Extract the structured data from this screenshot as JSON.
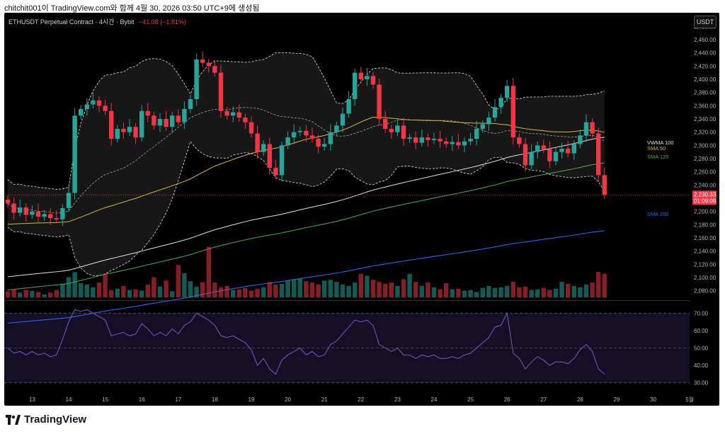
{
  "header": {
    "text": "chitchit001이 TradingView.com와 함께 4월 30, 2026 03:50 UTC+9에 생성됨"
  },
  "symbol": {
    "title": "ETHUSDT Perpetual Contract · 4시간 · Bybit",
    "change": "−41.08 (−1.81%)"
  },
  "currency_label": "USDT",
  "brand": {
    "name": "TradingView"
  },
  "colors": {
    "up": "#26a69a",
    "down": "#f23645",
    "sma50": "#d9b648",
    "sma120": "#4caf50",
    "sma200": "#2962ff",
    "vwma": "#e0e0e0",
    "rsi": "#7e57c2"
  },
  "chart_data": {
    "type": "candlestick",
    "ylim": [
      2070,
      2490
    ],
    "y_ticks": [
      "2,480.00",
      "2,460.00",
      "2,440.00",
      "2,420.00",
      "2,400.00",
      "2,380.00",
      "2,360.00",
      "2,340.00",
      "2,320.00",
      "2,300.00",
      "2,280.00",
      "2,260.00",
      "2,240.00",
      "2,220.00",
      "2,200.00",
      "2,180.00",
      "2,160.00",
      "2,140.00",
      "2,120.00",
      "2,100.00",
      "2,080.00"
    ],
    "y_tick_values": [
      2480,
      2460,
      2440,
      2420,
      2400,
      2380,
      2360,
      2340,
      2320,
      2300,
      2280,
      2260,
      2240,
      2220,
      2200,
      2180,
      2160,
      2140,
      2120,
      2100,
      2080
    ],
    "x_ticks": [
      "13",
      "14",
      "15",
      "16",
      "17",
      "18",
      "19",
      "20",
      "21",
      "22",
      "23",
      "24",
      "25",
      "26",
      "27",
      "28",
      "29",
      "30",
      "5월"
    ],
    "x_tick_index": [
      4,
      10,
      16,
      22,
      28,
      34,
      40,
      46,
      52,
      58,
      64,
      70,
      76,
      82,
      88,
      94,
      100,
      106,
      112
    ],
    "close": [
      2212,
      2198,
      2206,
      2195,
      2200,
      2192,
      2196,
      2190,
      2188,
      2205,
      2228,
      2345,
      2355,
      2362,
      2368,
      2360,
      2352,
      2310,
      2325,
      2320,
      2328,
      2312,
      2352,
      2345,
      2330,
      2340,
      2328,
      2345,
      2335,
      2355,
      2370,
      2430,
      2425,
      2420,
      2410,
      2352,
      2345,
      2350,
      2342,
      2335,
      2318,
      2290,
      2302,
      2266,
      2255,
      2300,
      2312,
      2320,
      2322,
      2315,
      2310,
      2298,
      2302,
      2320,
      2330,
      2348,
      2370,
      2410,
      2400,
      2405,
      2392,
      2340,
      2325,
      2320,
      2330,
      2310,
      2312,
      2304,
      2312,
      2308,
      2310,
      2306,
      2302,
      2305,
      2300,
      2306,
      2310,
      2325,
      2332,
      2342,
      2358,
      2372,
      2390,
      2312,
      2302,
      2270,
      2290,
      2300,
      2294,
      2276,
      2290,
      2295,
      2288,
      2302,
      2315,
      2335,
      2318,
      2255,
      2225
    ],
    "volume_ylim": [
      0,
      200
    ],
    "volume": [
      18,
      24,
      14,
      22,
      19,
      16,
      9,
      14,
      22,
      40,
      60,
      75,
      42,
      38,
      30,
      44,
      70,
      22,
      26,
      34,
      22,
      24,
      20,
      38,
      60,
      32,
      50,
      18,
      96,
      72,
      48,
      32,
      45,
      150,
      44,
      30,
      34,
      22,
      24,
      28,
      20,
      26,
      30,
      46,
      38,
      40,
      50,
      52,
      56,
      48,
      44,
      38,
      50,
      52,
      46,
      38,
      34,
      44,
      70,
      64,
      52,
      46,
      40,
      44,
      34,
      54,
      70,
      46,
      34,
      44,
      30,
      24,
      42,
      24,
      26,
      20,
      22,
      16,
      28,
      34,
      28,
      30,
      34,
      46,
      30,
      32,
      22,
      24,
      28,
      22,
      26,
      46,
      40,
      34,
      30,
      38,
      44,
      76,
      70
    ],
    "rsi_ylim": [
      25,
      75
    ],
    "rsi_ticks": [
      "70.00",
      "60.00",
      "50.00",
      "40.00",
      "30.00"
    ],
    "rsi_tick_values": [
      70,
      60,
      50,
      40,
      30
    ],
    "rsi": [
      50,
      47,
      48,
      46,
      48,
      46,
      47,
      45,
      46,
      55,
      65,
      72,
      71,
      72,
      70,
      68,
      66,
      57,
      58,
      59,
      57,
      58,
      64,
      61,
      57,
      59,
      57,
      61,
      58,
      63,
      65,
      70,
      68,
      66,
      63,
      57,
      56,
      57,
      55,
      53,
      49,
      40,
      44,
      38,
      35,
      43,
      46,
      48,
      50,
      46,
      48,
      45,
      46,
      52,
      54,
      58,
      62,
      66,
      65,
      66,
      63,
      52,
      50,
      48,
      50,
      46,
      46,
      44,
      46,
      45,
      46,
      44,
      44,
      45,
      44,
      46,
      47,
      50,
      53,
      56,
      62,
      63,
      70,
      47,
      44,
      38,
      42,
      45,
      43,
      40,
      42,
      42,
      41,
      44,
      49,
      52,
      48,
      38,
      35
    ],
    "legend": [
      {
        "name": "VWMA 100"
      },
      {
        "name": "SMA 50"
      },
      {
        "name": "SMA 120"
      },
      {
        "name": "SMA 200"
      }
    ],
    "last_price_label": "2,230.33",
    "countdown_label": "01:09:09"
  }
}
